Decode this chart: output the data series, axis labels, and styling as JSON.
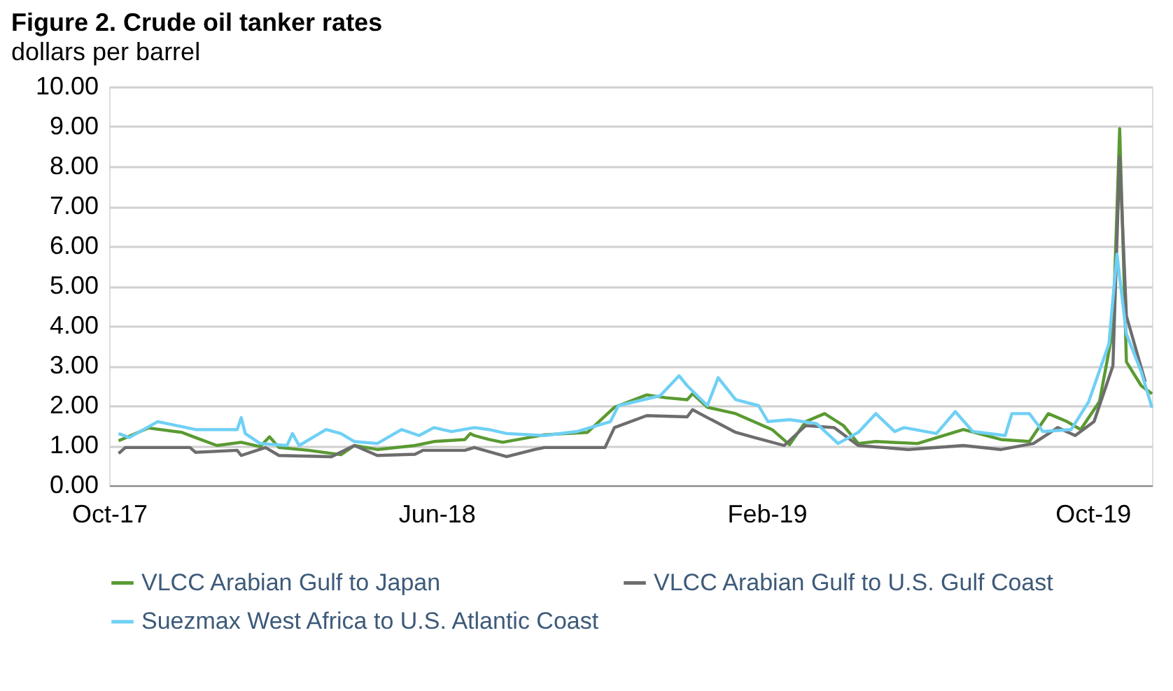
{
  "chart_data": {
    "type": "line",
    "title": "Figure 2. Crude oil tanker rates",
    "ylabel": "dollars per barrel",
    "xlim": [
      "2017-10-01",
      "2019-11-14"
    ],
    "ylim": [
      0,
      10
    ],
    "xticks": [
      {
        "value": "2017-10-01",
        "label": "Oct-17"
      },
      {
        "value": "2018-06-01",
        "label": "Jun-18"
      },
      {
        "value": "2019-02-01",
        "label": "Feb-19"
      },
      {
        "value": "2019-10-01",
        "label": "Oct-19"
      }
    ],
    "yticks": [
      {
        "value": 0,
        "label": "0.00"
      },
      {
        "value": 1,
        "label": "1.00"
      },
      {
        "value": 2,
        "label": "2.00"
      },
      {
        "value": 3,
        "label": "3.00"
      },
      {
        "value": 4,
        "label": "4.00"
      },
      {
        "value": 5,
        "label": "5.00"
      },
      {
        "value": 6,
        "label": "6.00"
      },
      {
        "value": 7,
        "label": "7.00"
      },
      {
        "value": 8,
        "label": "8.00"
      },
      {
        "value": 9,
        "label": "9.00"
      },
      {
        "value": 10,
        "label": "10.00"
      }
    ],
    "grid": "y",
    "legend": "bottom",
    "line_style": "solid",
    "marker": "none",
    "series": [
      {
        "name": "VLCC Arabian Gulf to Japan",
        "color": "#5a9a32",
        "x": [
          "2017-10-08",
          "2017-10-30",
          "2017-11-24",
          "2017-12-04",
          "2017-12-20",
          "2018-01-07",
          "2018-01-21",
          "2018-01-28",
          "2018-02-04",
          "2018-02-26",
          "2018-03-22",
          "2018-04-01",
          "2018-04-18",
          "2018-05-16",
          "2018-05-30",
          "2018-06-22",
          "2018-06-26",
          "2018-06-29",
          "2018-07-10",
          "2018-07-20",
          "2018-08-20",
          "2018-09-21",
          "2018-10-11",
          "2018-11-04",
          "2018-11-18",
          "2018-12-04",
          "2018-12-08",
          "2018-12-19",
          "2019-01-09",
          "2019-02-05",
          "2019-02-18",
          "2019-03-02",
          "2019-03-16",
          "2019-03-30",
          "2019-04-10",
          "2019-04-23",
          "2019-05-24",
          "2019-06-27",
          "2019-07-25",
          "2019-08-15",
          "2019-08-29",
          "2019-09-12",
          "2019-09-22",
          "2019-10-06",
          "2019-10-16",
          "2019-10-21",
          "2019-10-26",
          "2019-11-06",
          "2019-11-14"
        ],
        "values": [
          1.12,
          1.44,
          1.33,
          1.2,
          1.0,
          1.08,
          0.97,
          1.22,
          0.95,
          0.88,
          0.77,
          1.0,
          0.9,
          1.0,
          1.1,
          1.15,
          1.3,
          1.25,
          1.15,
          1.08,
          1.27,
          1.33,
          1.96,
          2.27,
          2.2,
          2.15,
          2.3,
          1.96,
          1.8,
          1.4,
          1.02,
          1.6,
          1.8,
          1.5,
          1.05,
          1.1,
          1.05,
          1.4,
          1.15,
          1.1,
          1.8,
          1.6,
          1.4,
          2.1,
          3.9,
          8.95,
          3.1,
          2.5,
          2.3
        ]
      },
      {
        "name": "VLCC Arabian Gulf to U.S. Gulf Coast",
        "color": "#6d6d6d",
        "x": [
          "2017-10-08",
          "2017-10-13",
          "2017-11-30",
          "2017-12-04",
          "2018-01-04",
          "2018-01-07",
          "2018-01-25",
          "2018-02-04",
          "2018-03-15",
          "2018-04-01",
          "2018-04-18",
          "2018-05-16",
          "2018-05-22",
          "2018-06-22",
          "2018-06-29",
          "2018-07-23",
          "2018-08-13",
          "2018-08-20",
          "2018-10-04",
          "2018-10-11",
          "2018-11-04",
          "2018-12-04",
          "2018-12-08",
          "2018-12-19",
          "2019-01-09",
          "2019-01-23",
          "2019-02-14",
          "2019-03-02",
          "2019-03-23",
          "2019-04-10",
          "2019-05-17",
          "2019-06-27",
          "2019-07-25",
          "2019-08-18",
          "2019-09-05",
          "2019-09-18",
          "2019-10-02",
          "2019-10-16",
          "2019-10-21",
          "2019-10-26",
          "2019-11-09"
        ],
        "values": [
          0.8,
          0.95,
          0.95,
          0.83,
          0.88,
          0.75,
          0.95,
          0.75,
          0.72,
          1.0,
          0.75,
          0.78,
          0.88,
          0.88,
          0.95,
          0.72,
          0.9,
          0.95,
          0.95,
          1.45,
          1.75,
          1.72,
          1.9,
          1.7,
          1.33,
          1.2,
          1.0,
          1.5,
          1.45,
          1.0,
          0.9,
          1.0,
          0.9,
          1.05,
          1.45,
          1.25,
          1.6,
          3.0,
          8.25,
          4.25,
          2.6
        ]
      },
      {
        "name": "Suezmax West Africa to U.S. Atlantic Coast",
        "color": "#6fd0f5",
        "x": [
          "2017-10-08",
          "2017-10-16",
          "2017-11-06",
          "2017-12-04",
          "2018-01-04",
          "2018-01-07",
          "2018-01-10",
          "2018-01-21",
          "2018-02-10",
          "2018-02-14",
          "2018-02-19",
          "2018-03-11",
          "2018-03-22",
          "2018-04-01",
          "2018-04-18",
          "2018-05-06",
          "2018-05-19",
          "2018-05-30",
          "2018-06-12",
          "2018-06-29",
          "2018-07-10",
          "2018-07-23",
          "2018-08-20",
          "2018-09-13",
          "2018-10-08",
          "2018-10-14",
          "2018-11-14",
          "2018-11-28",
          "2018-12-04",
          "2018-12-19",
          "2018-12-27",
          "2019-01-09",
          "2019-01-26",
          "2019-02-02",
          "2019-02-18",
          "2019-03-10",
          "2019-03-26",
          "2019-04-10",
          "2019-04-23",
          "2019-05-07",
          "2019-05-14",
          "2019-06-07",
          "2019-06-21",
          "2019-07-04",
          "2019-07-28",
          "2019-08-02",
          "2019-08-15",
          "2019-08-25",
          "2019-09-15",
          "2019-09-28",
          "2019-10-13",
          "2019-10-19",
          "2019-10-26",
          "2019-11-06",
          "2019-11-14"
        ],
        "values": [
          1.3,
          1.2,
          1.6,
          1.4,
          1.4,
          1.7,
          1.3,
          1.05,
          1.0,
          1.3,
          1.0,
          1.4,
          1.3,
          1.1,
          1.05,
          1.4,
          1.25,
          1.45,
          1.35,
          1.45,
          1.4,
          1.3,
          1.25,
          1.35,
          1.6,
          2.0,
          2.25,
          2.75,
          2.5,
          2.0,
          2.7,
          2.15,
          2.0,
          1.6,
          1.65,
          1.55,
          1.05,
          1.33,
          1.8,
          1.35,
          1.45,
          1.3,
          1.85,
          1.35,
          1.25,
          1.8,
          1.8,
          1.35,
          1.4,
          2.1,
          3.55,
          5.8,
          3.8,
          2.85,
          1.95
        ]
      }
    ]
  }
}
